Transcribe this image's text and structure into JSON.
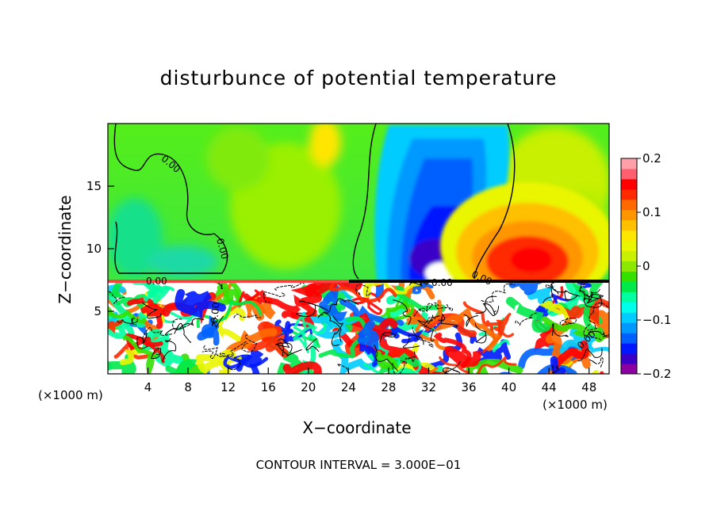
{
  "chart_data": {
    "type": "heatmap",
    "title": "disturbunce of potential temperature",
    "xlabel": "X−coordinate",
    "ylabel": "Z−coordinate",
    "x_unit_left": "(×1000 m)",
    "x_unit_right": "(×1000 m)",
    "xlim": [
      0,
      50
    ],
    "ylim": [
      0,
      20
    ],
    "x_ticks": [
      "4",
      "8",
      "12",
      "16",
      "20",
      "24",
      "28",
      "32",
      "36",
      "40",
      "44",
      "48"
    ],
    "y_ticks": [
      "5",
      "10",
      "15"
    ],
    "contour_label": "0.00",
    "contour_interval": "CONTOUR INTERVAL = 3.000E−01",
    "colorbar": {
      "min": -0.2,
      "max": 0.2,
      "ticks": [
        "0.2",
        "0.1",
        "0",
        "−0.1",
        "−0.2"
      ],
      "colors": [
        "#8b00a0",
        "#3a00c8",
        "#0018ff",
        "#0060ff",
        "#0099ff",
        "#00ccff",
        "#00ffea",
        "#00ffa0",
        "#00e94a",
        "#33e000",
        "#8ce800",
        "#c8f000",
        "#eaf500",
        "#ffe600",
        "#ffc000",
        "#ff9600",
        "#ff6a00",
        "#ff2a00",
        "#ff0000",
        "#ff6070",
        "#ffa0a8"
      ]
    },
    "features": [
      {
        "name": "negative anomaly",
        "x": 32,
        "z": 11,
        "value": -0.2
      },
      {
        "name": "positive anomaly",
        "x": 43,
        "z": 9.5,
        "value": 0.15
      },
      {
        "name": "stable layer interface",
        "z": 7.2
      }
    ]
  }
}
